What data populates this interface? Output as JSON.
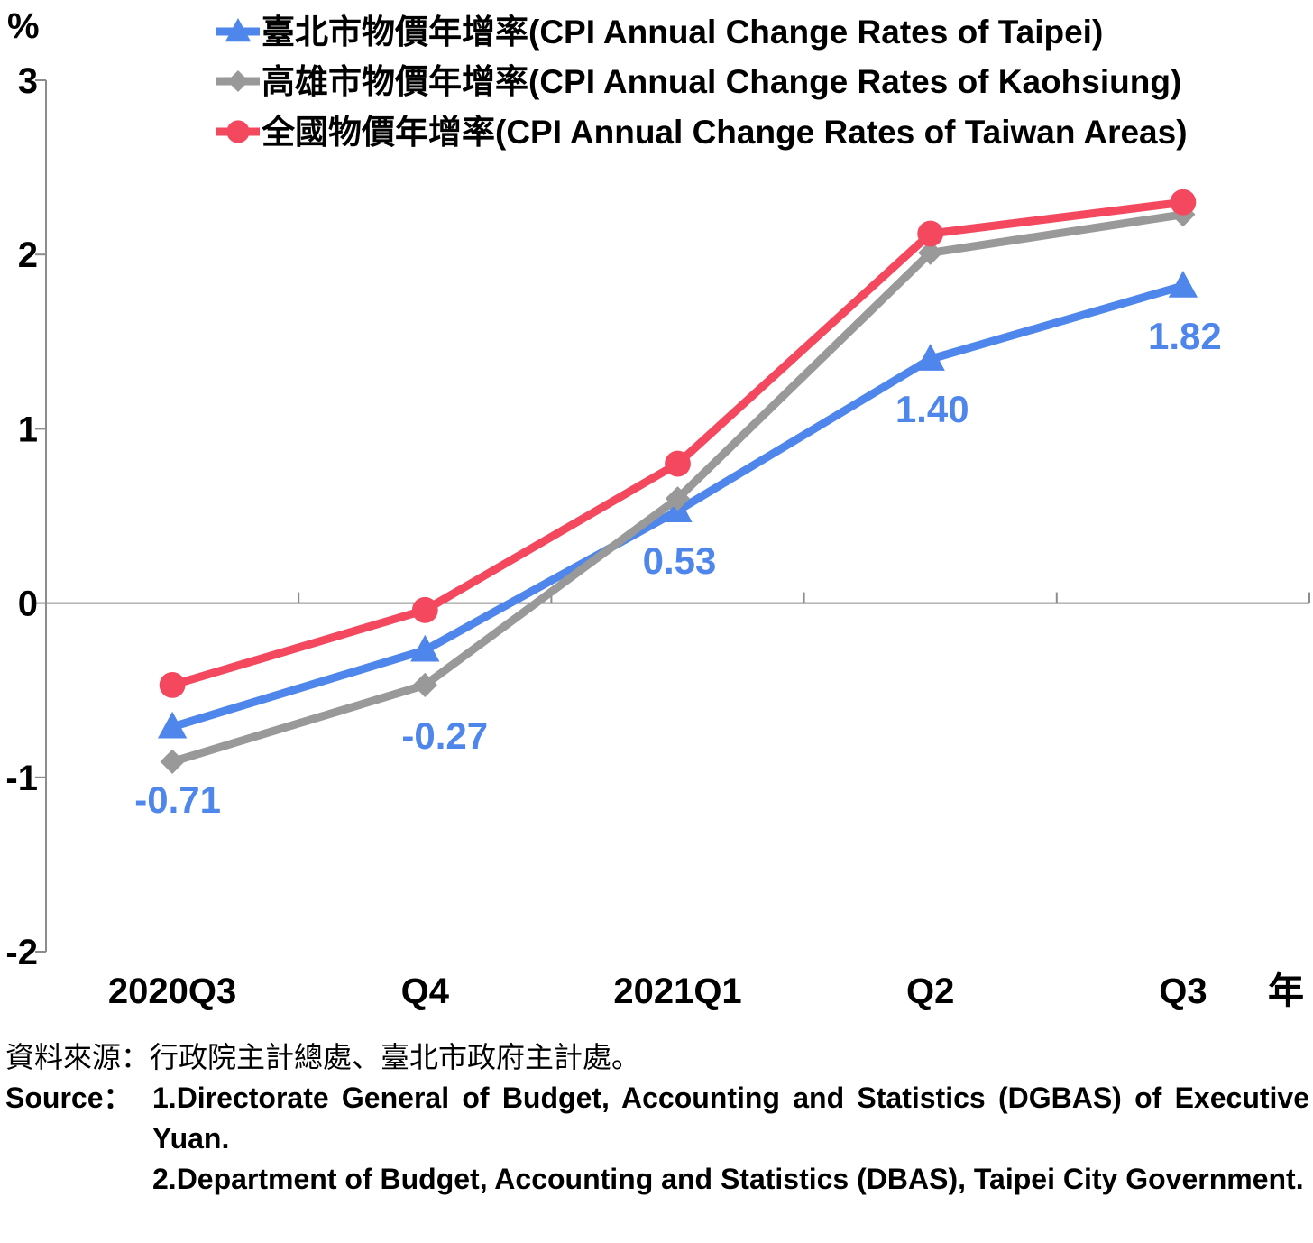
{
  "chart_data": {
    "type": "line",
    "ylabel": "%",
    "xlabel": "年",
    "ylim": [
      -2,
      3
    ],
    "yticks": [
      "-2",
      "-1",
      "0",
      "1",
      "2",
      "3"
    ],
    "categories": [
      "2020Q3",
      "Q4",
      "2021Q1",
      "Q2",
      "Q3"
    ],
    "legend_position": "top-right",
    "grid": false,
    "series": [
      {
        "name": "臺北市物價年增率(CPI Annual Change Rates of Taipei)",
        "values": [
          -0.71,
          -0.27,
          0.53,
          1.4,
          1.82
        ],
        "labels": [
          "-0.71",
          "-0.27",
          "0.53",
          "1.40",
          "1.82"
        ],
        "color": "#4f86ec",
        "marker": "triangle"
      },
      {
        "name": "高雄市物價年增率(CPI Annual Change Rates of Kaohsiung)",
        "values": [
          -0.91,
          -0.47,
          0.6,
          2.01,
          2.23
        ],
        "color": "#999999",
        "marker": "diamond"
      },
      {
        "name": "全國物價年增率(CPI Annual Change Rates of Taiwan Areas)",
        "values": [
          -0.47,
          -0.04,
          0.8,
          2.12,
          2.3
        ],
        "color": "#f4485f",
        "marker": "circle"
      }
    ]
  },
  "source": {
    "zh_prefix": "資料來源：",
    "zh_text": "行政院主計總處、臺北市政府主計處。",
    "en_prefix": "Source：",
    "item1": "1.Directorate General of Budget, Accounting and Statistics (DGBAS) of Executive Yuan.",
    "item2": "2.Department of Budget, Accounting and Statistics (DBAS), Taipei City Government."
  }
}
